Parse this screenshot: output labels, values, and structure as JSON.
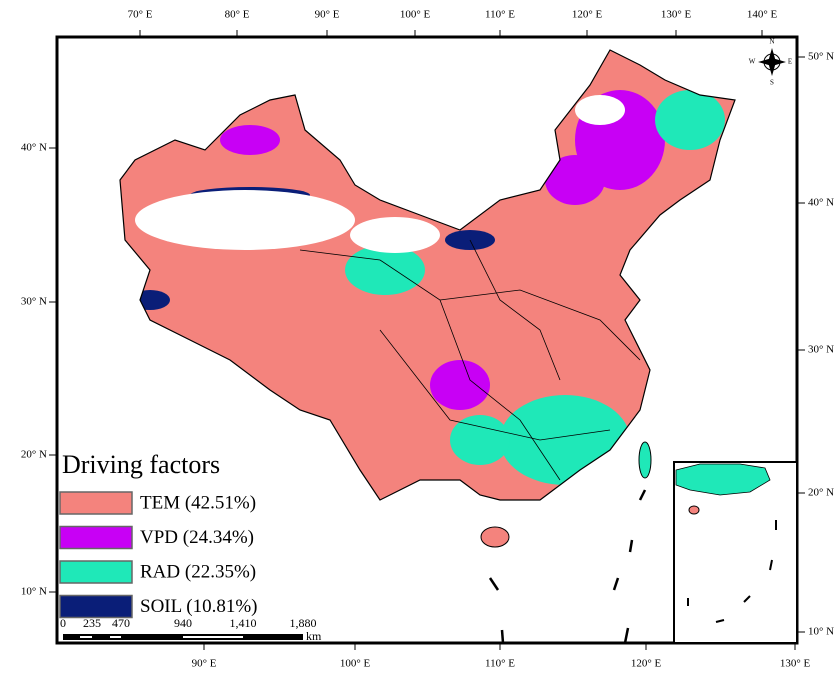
{
  "map": {
    "top_labels": [
      "70° E",
      "80° E",
      "90° E",
      "100° E",
      "110° E",
      "120° E",
      "130° E",
      "140° E"
    ],
    "bottom_labels": [
      "90° E",
      "100° E",
      "110° E",
      "120° E",
      "130° E"
    ],
    "left_labels": [
      "40° N",
      "30° N",
      "20° N",
      "10° N"
    ],
    "right_labels": [
      "50° N",
      "40° N",
      "30° N",
      "20° N",
      "10° N"
    ],
    "compass": {
      "n": "N",
      "s": "S",
      "e": "E",
      "w": "W"
    },
    "legend": {
      "title": "Driving factors",
      "items": [
        {
          "label": "TEM (42.51%)",
          "color": "#f4837d"
        },
        {
          "label": "VPD (24.34%)",
          "color": "#c800f5"
        },
        {
          "label": "RAD (22.35%)",
          "color": "#1fe8b8"
        },
        {
          "label": "SOIL (10.81%)",
          "color": "#0a1e78"
        }
      ]
    },
    "scale_bar": {
      "labels": [
        "0",
        "235",
        "470",
        "940",
        "1,410",
        "1,880"
      ],
      "unit": "km"
    }
  }
}
